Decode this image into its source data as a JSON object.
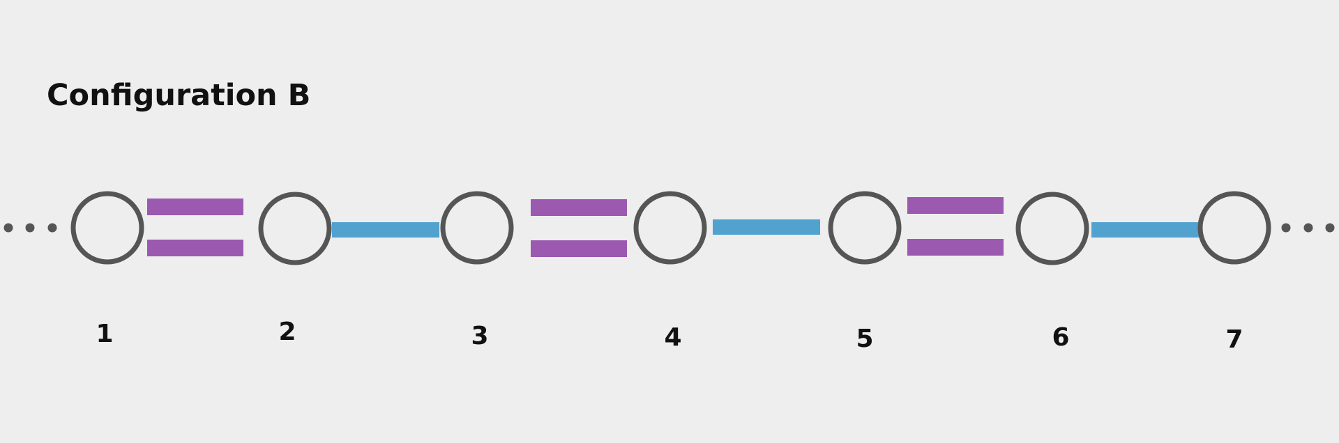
{
  "title": "Configuration B",
  "colors": {
    "background": "#eeeeee",
    "node_stroke": "#555555",
    "node_fill": "#eeeeee",
    "double_bond": "#9b59b0",
    "single_bond": "#52a2cf",
    "label": "#111111",
    "ellipsis": "#555555"
  },
  "nodes": [
    {
      "id": 1,
      "label": "1"
    },
    {
      "id": 2,
      "label": "2"
    },
    {
      "id": 3,
      "label": "3"
    },
    {
      "id": 4,
      "label": "4"
    },
    {
      "id": 5,
      "label": "5"
    },
    {
      "id": 6,
      "label": "6"
    },
    {
      "id": 7,
      "label": "7"
    }
  ],
  "bonds": [
    {
      "from": 1,
      "to": 2,
      "type": "double"
    },
    {
      "from": 2,
      "to": 3,
      "type": "single"
    },
    {
      "from": 3,
      "to": 4,
      "type": "double"
    },
    {
      "from": 4,
      "to": 5,
      "type": "single"
    },
    {
      "from": 5,
      "to": 6,
      "type": "double"
    },
    {
      "from": 6,
      "to": 7,
      "type": "single"
    }
  ],
  "continues_left": true,
  "continues_right": true
}
